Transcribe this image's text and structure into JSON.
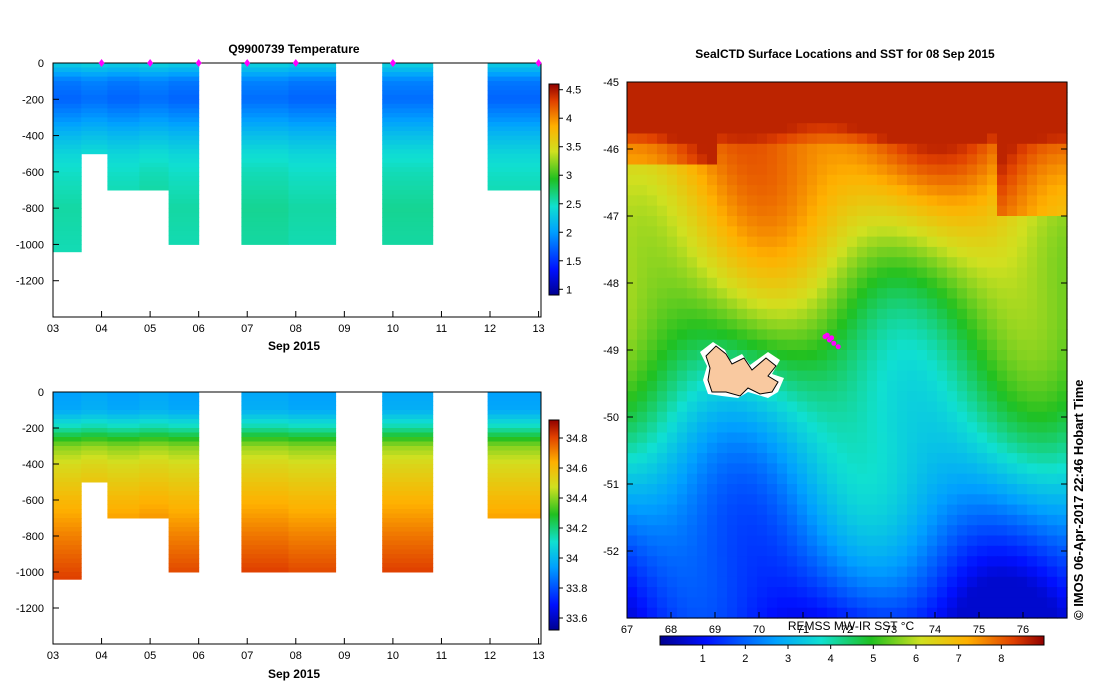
{
  "chart_data": [
    {
      "type": "heatmap",
      "title": "Q9900739  Temperature",
      "xlabel": "Sep 2015",
      "x_ticks": [
        "03",
        "04",
        "05",
        "06",
        "07",
        "08",
        "09",
        "10",
        "11",
        "12",
        "13"
      ],
      "y_ticks": [
        "0",
        "-200",
        "-400",
        "-600",
        "-800",
        "-1000",
        "-1200"
      ],
      "ylim": [
        -1400,
        0
      ],
      "colorbar_ticks": [
        "4.5",
        "4",
        "3.5",
        "3",
        "2.5",
        "2",
        "1.5",
        "1"
      ],
      "colorbar_range": [
        0.9,
        4.6
      ],
      "colormap": "jet",
      "profiles": [
        {
          "day_start": 3.0,
          "day_end": 3.58,
          "max_depth": -1040
        },
        {
          "day_start": 3.58,
          "day_end": 4.12,
          "max_depth": -500
        },
        {
          "day_start": 4.12,
          "day_end": 4.78,
          "max_depth": -700
        },
        {
          "day_start": 4.78,
          "day_end": 5.38,
          "max_depth": -700
        },
        {
          "day_start": 5.38,
          "day_end": 6.0,
          "max_depth": -1000
        },
        {
          "day_start": 6.88,
          "day_end": 7.85,
          "max_depth": -1000
        },
        {
          "day_start": 7.85,
          "day_end": 8.82,
          "max_depth": -1000
        },
        {
          "day_start": 9.78,
          "day_end": 10.82,
          "max_depth": -1000
        },
        {
          "day_start": 11.95,
          "day_end": 13.05,
          "max_depth": -700
        }
      ],
      "temperature_profile": [
        {
          "depth": 0,
          "value": 2.35
        },
        {
          "depth": -100,
          "value": 1.85
        },
        {
          "depth": -200,
          "value": 1.75
        },
        {
          "depth": -300,
          "value": 1.95
        },
        {
          "depth": -400,
          "value": 2.2
        },
        {
          "depth": -500,
          "value": 2.4
        },
        {
          "depth": -600,
          "value": 2.5
        },
        {
          "depth": -800,
          "value": 2.6
        },
        {
          "depth": -1040,
          "value": 2.55
        }
      ],
      "surface_markers_days": [
        4.0,
        5.0,
        6.0,
        7.0,
        8.0,
        10.0,
        13.0
      ]
    },
    {
      "type": "heatmap",
      "xlabel": "Sep 2015",
      "x_ticks": [
        "03",
        "04",
        "05",
        "06",
        "07",
        "08",
        "09",
        "10",
        "11",
        "12",
        "13"
      ],
      "y_ticks": [
        "0",
        "-200",
        "-400",
        "-600",
        "-800",
        "-1000",
        "-1200"
      ],
      "ylim": [
        -1400,
        0
      ],
      "colorbar_ticks": [
        "34.8",
        "34.6",
        "34.4",
        "34.2",
        "34",
        "33.8",
        "33.6"
      ],
      "colorbar_range": [
        33.52,
        34.92
      ],
      "colormap": "jet",
      "salinity_profile": [
        {
          "depth": 0,
          "value": 33.95
        },
        {
          "depth": -100,
          "value": 33.97
        },
        {
          "depth": -200,
          "value": 34.15
        },
        {
          "depth": -300,
          "value": 34.4
        },
        {
          "depth": -400,
          "value": 34.5
        },
        {
          "depth": -600,
          "value": 34.62
        },
        {
          "depth": -800,
          "value": 34.72
        },
        {
          "depth": -1040,
          "value": 34.82
        }
      ]
    },
    {
      "type": "heatmap",
      "title": "SealCTD Surface Locations and SST for 08 Sep 2015",
      "x_ticks": [
        "67",
        "68",
        "69",
        "70",
        "71",
        "72",
        "73",
        "74",
        "75",
        "76"
      ],
      "y_ticks": [
        "-45",
        "-46",
        "-47",
        "-48",
        "-49",
        "-50",
        "-51",
        "-52"
      ],
      "xlim": [
        67,
        77
      ],
      "ylim": [
        -53,
        -45
      ],
      "colorbar_title": "REMSS MW-IR SST °C",
      "colorbar_ticks": [
        "1",
        "2",
        "3",
        "4",
        "5",
        "6",
        "7",
        "8"
      ],
      "colorbar_range": [
        0,
        9
      ],
      "colormap": "jet",
      "seal_positions_lonlat": [
        [
          71.5,
          -48.8
        ],
        [
          71.6,
          -48.85
        ],
        [
          71.7,
          -48.9
        ],
        [
          71.8,
          -48.95
        ],
        [
          71.65,
          -48.82
        ],
        [
          71.55,
          -48.78
        ]
      ],
      "credit": "© IMOS 06-Apr-2017 22:46 Hobart Time"
    }
  ]
}
